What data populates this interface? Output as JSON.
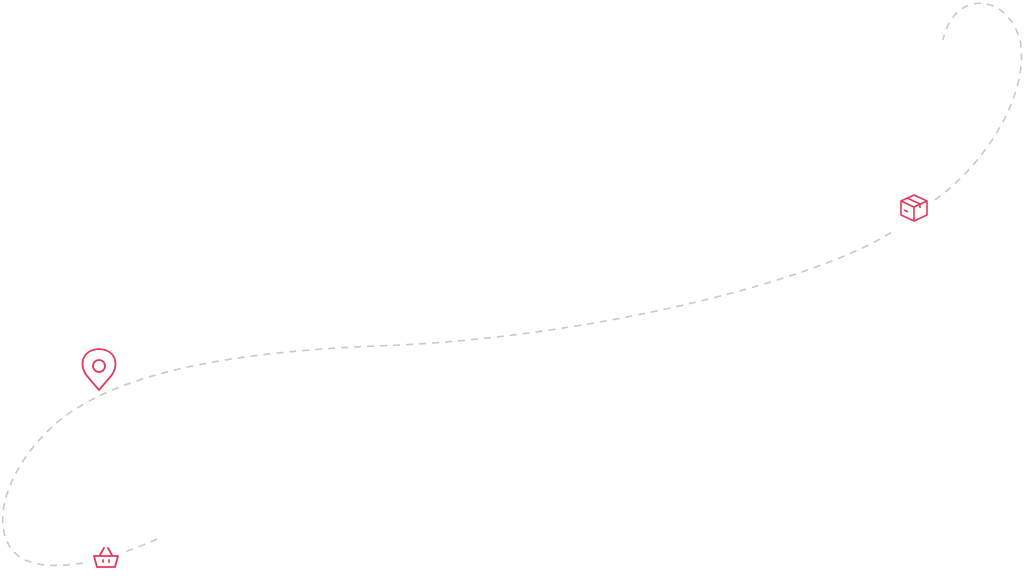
{
  "colors": {
    "route": "#c8c8c8",
    "accent": "#e2385a",
    "background": "#ffffff"
  },
  "icons": [
    "map-pin-icon",
    "package-box-icon",
    "shopping-basket-icon"
  ]
}
